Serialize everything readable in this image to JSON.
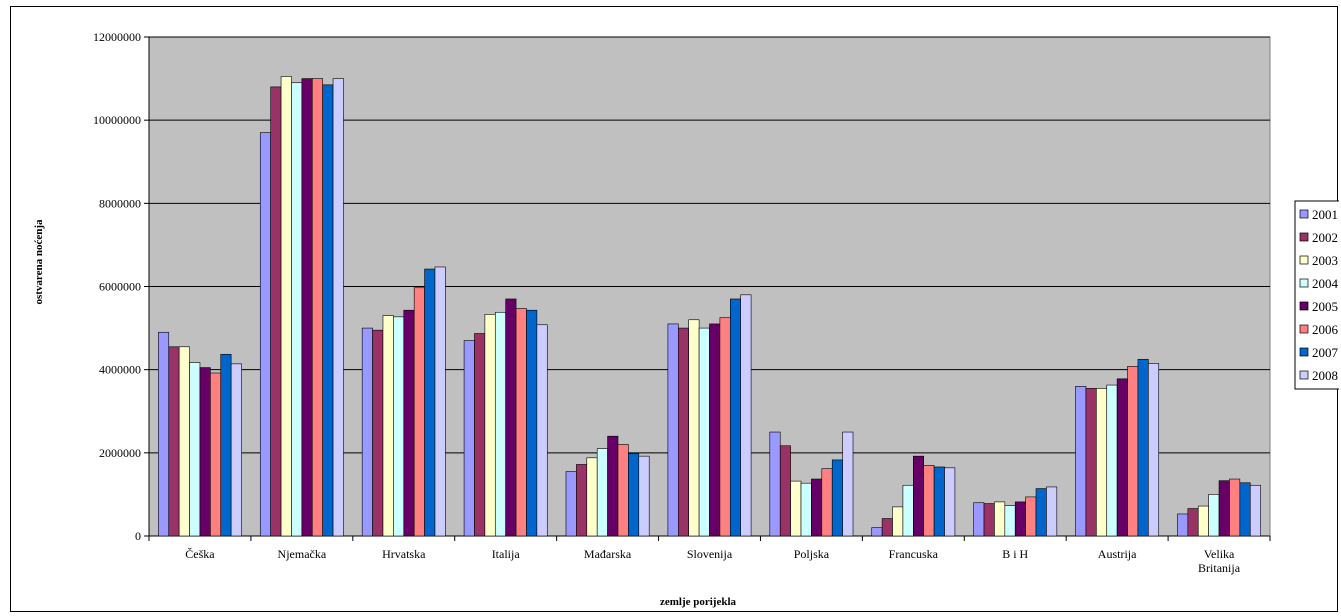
{
  "chart_data": {
    "type": "bar",
    "title": "",
    "xlabel": "zemlje porijekla",
    "ylabel": "ostvarena noćenja",
    "ylim": [
      0,
      12000000
    ],
    "yticks": [
      0,
      2000000,
      4000000,
      6000000,
      8000000,
      10000000,
      12000000
    ],
    "ytick_labels": [
      "0",
      "2000000",
      "4000000",
      "6000000",
      "8000000",
      "10000000",
      "12000000"
    ],
    "grid": true,
    "legend_position": "right",
    "categories": [
      "Češka",
      "Njemačka",
      "Hrvatska",
      "Italija",
      "Mađarska",
      "Slovenija",
      "Poljska",
      "Francuska",
      "B i H",
      "Austrija",
      "Velika Britanija"
    ],
    "category_lines": [
      [
        "Češka"
      ],
      [
        "Njemačka"
      ],
      [
        "Hrvatska"
      ],
      [
        "Italija"
      ],
      [
        "Mađarska"
      ],
      [
        "Slovenija"
      ],
      [
        "Poljska"
      ],
      [
        "Francuska"
      ],
      [
        "B i H"
      ],
      [
        "Austrija"
      ],
      [
        "Velika",
        "Britanija"
      ]
    ],
    "series": [
      {
        "name": "2001",
        "color": "#9999ff",
        "values": [
          4900000,
          9700000,
          5000000,
          4700000,
          1550000,
          5100000,
          2500000,
          200000,
          800000,
          3600000,
          530000
        ]
      },
      {
        "name": "2002",
        "color": "#993366",
        "values": [
          4550000,
          10800000,
          4950000,
          4870000,
          1720000,
          5000000,
          2170000,
          420000,
          780000,
          3550000,
          660000
        ]
      },
      {
        "name": "2003",
        "color": "#ffffcc",
        "values": [
          4550000,
          11050000,
          5300000,
          5330000,
          1880000,
          5200000,
          1320000,
          700000,
          820000,
          3550000,
          720000
        ]
      },
      {
        "name": "2004",
        "color": "#ccffff",
        "values": [
          4170000,
          10900000,
          5270000,
          5380000,
          2100000,
          5000000,
          1270000,
          1220000,
          730000,
          3630000,
          1000000
        ]
      },
      {
        "name": "2005",
        "color": "#660066",
        "values": [
          4050000,
          11000000,
          5430000,
          5700000,
          2400000,
          5100000,
          1370000,
          1920000,
          820000,
          3780000,
          1330000
        ]
      },
      {
        "name": "2006",
        "color": "#ff8080",
        "values": [
          3920000,
          11000000,
          5970000,
          5470000,
          2200000,
          5250000,
          1620000,
          1700000,
          940000,
          4080000,
          1370000
        ]
      },
      {
        "name": "2007",
        "color": "#0066cc",
        "values": [
          4370000,
          10850000,
          6420000,
          5430000,
          1980000,
          5700000,
          1830000,
          1660000,
          1140000,
          4250000,
          1280000
        ]
      },
      {
        "name": "2008",
        "color": "#ccccff",
        "values": [
          4140000,
          11000000,
          6470000,
          5080000,
          1920000,
          5800000,
          2500000,
          1640000,
          1180000,
          4150000,
          1220000
        ]
      }
    ]
  }
}
